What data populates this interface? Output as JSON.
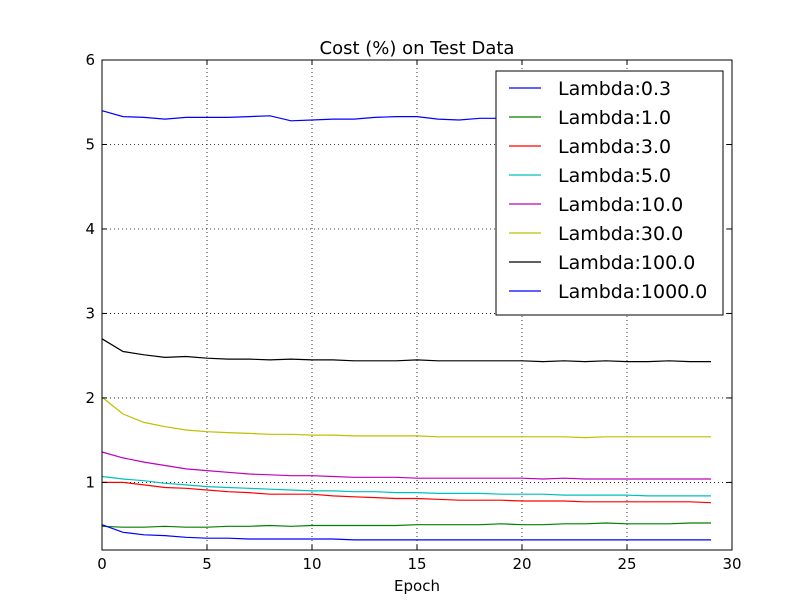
{
  "chart_data": {
    "type": "line",
    "title": "Cost (%) on Test Data",
    "xlabel": "Epoch",
    "ylabel": "",
    "xlim": [
      0,
      30
    ],
    "ylim": [
      0.2,
      6
    ],
    "xticks": [
      0,
      5,
      10,
      15,
      20,
      25,
      30
    ],
    "yticks": [
      1,
      2,
      3,
      4,
      5,
      6
    ],
    "xtick_labels": [
      "0",
      "5",
      "10",
      "15",
      "20",
      "25",
      "30"
    ],
    "ytick_labels": [
      "1",
      "2",
      "3",
      "4",
      "5",
      "6"
    ],
    "grid": true,
    "legend_position": "top-right",
    "x": [
      0,
      1,
      2,
      3,
      4,
      5,
      6,
      7,
      8,
      9,
      10,
      11,
      12,
      13,
      14,
      15,
      16,
      17,
      18,
      19,
      20,
      21,
      22,
      23,
      24,
      25,
      26,
      27,
      28,
      29
    ],
    "series": [
      {
        "name": "Lambda:0.3",
        "color": "#0000ff",
        "values": [
          5.4,
          5.33,
          5.32,
          5.3,
          5.32,
          5.32,
          5.32,
          5.33,
          5.34,
          5.28,
          5.29,
          5.3,
          5.3,
          5.32,
          5.33,
          5.33,
          5.3,
          5.29,
          5.31,
          5.31,
          5.3,
          5.31,
          5.31,
          5.3,
          5.3,
          5.31,
          5.31,
          5.31,
          5.31,
          5.31
        ]
      },
      {
        "name": "Lambda:1.0",
        "color": "#008000",
        "values": [
          0.48,
          0.47,
          0.47,
          0.48,
          0.47,
          0.47,
          0.48,
          0.48,
          0.49,
          0.48,
          0.49,
          0.49,
          0.49,
          0.49,
          0.49,
          0.5,
          0.5,
          0.5,
          0.5,
          0.51,
          0.5,
          0.5,
          0.51,
          0.51,
          0.52,
          0.51,
          0.51,
          0.51,
          0.52,
          0.52
        ]
      },
      {
        "name": "Lambda:3.0",
        "color": "#ff0000",
        "values": [
          1.0,
          1.0,
          0.97,
          0.94,
          0.93,
          0.91,
          0.89,
          0.88,
          0.86,
          0.86,
          0.86,
          0.84,
          0.83,
          0.82,
          0.81,
          0.81,
          0.8,
          0.79,
          0.79,
          0.79,
          0.78,
          0.78,
          0.78,
          0.77,
          0.77,
          0.77,
          0.77,
          0.77,
          0.77,
          0.76
        ]
      },
      {
        "name": "Lambda:5.0",
        "color": "#00bfbf",
        "values": [
          1.07,
          1.04,
          1.02,
          0.99,
          0.97,
          0.95,
          0.94,
          0.93,
          0.92,
          0.91,
          0.9,
          0.9,
          0.89,
          0.89,
          0.88,
          0.88,
          0.87,
          0.87,
          0.87,
          0.86,
          0.86,
          0.86,
          0.85,
          0.85,
          0.85,
          0.85,
          0.84,
          0.84,
          0.84,
          0.84
        ]
      },
      {
        "name": "Lambda:10.0",
        "color": "#bf00bf",
        "values": [
          1.36,
          1.29,
          1.24,
          1.2,
          1.16,
          1.14,
          1.12,
          1.1,
          1.09,
          1.08,
          1.08,
          1.07,
          1.06,
          1.06,
          1.06,
          1.05,
          1.05,
          1.05,
          1.05,
          1.05,
          1.05,
          1.04,
          1.05,
          1.04,
          1.04,
          1.04,
          1.04,
          1.04,
          1.04,
          1.04
        ]
      },
      {
        "name": "Lambda:30.0",
        "color": "#bfbf00",
        "values": [
          2.01,
          1.81,
          1.71,
          1.66,
          1.62,
          1.6,
          1.59,
          1.58,
          1.57,
          1.57,
          1.56,
          1.56,
          1.55,
          1.55,
          1.55,
          1.55,
          1.54,
          1.54,
          1.54,
          1.54,
          1.54,
          1.54,
          1.54,
          1.53,
          1.54,
          1.54,
          1.54,
          1.54,
          1.54,
          1.54
        ]
      },
      {
        "name": "Lambda:100.0",
        "color": "#000000",
        "values": [
          2.7,
          2.55,
          2.51,
          2.48,
          2.49,
          2.47,
          2.46,
          2.46,
          2.45,
          2.46,
          2.45,
          2.45,
          2.44,
          2.44,
          2.44,
          2.45,
          2.44,
          2.44,
          2.44,
          2.44,
          2.44,
          2.43,
          2.44,
          2.43,
          2.44,
          2.43,
          2.43,
          2.44,
          2.43,
          2.43
        ]
      },
      {
        "name": "Lambda:1000.0",
        "color": "#0000ff",
        "values": [
          0.5,
          0.41,
          0.38,
          0.37,
          0.35,
          0.34,
          0.34,
          0.33,
          0.33,
          0.33,
          0.33,
          0.33,
          0.32,
          0.32,
          0.32,
          0.32,
          0.32,
          0.32,
          0.32,
          0.32,
          0.32,
          0.32,
          0.32,
          0.32,
          0.32,
          0.32,
          0.32,
          0.32,
          0.32,
          0.32
        ]
      }
    ]
  }
}
